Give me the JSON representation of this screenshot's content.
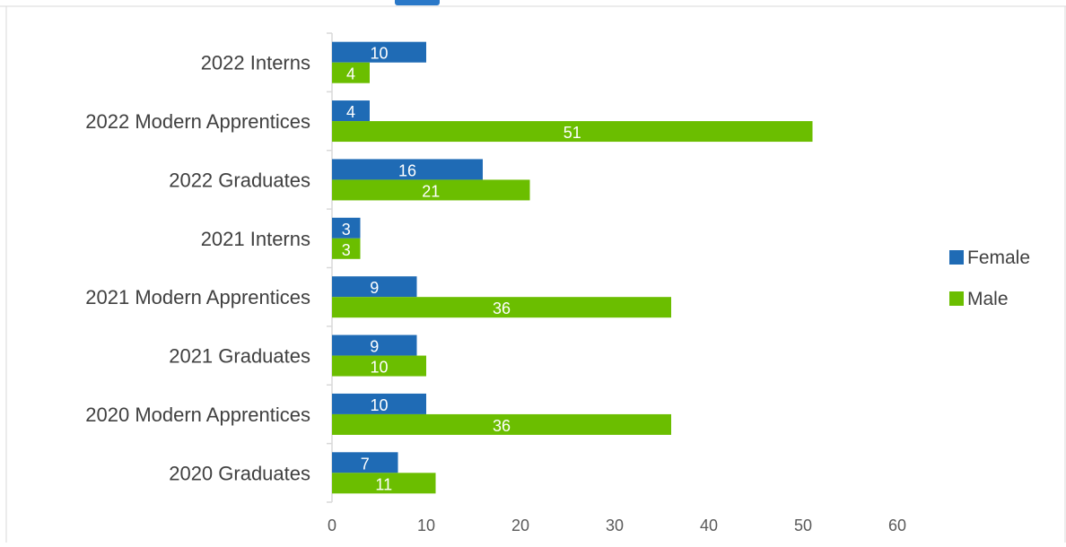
{
  "chart_data": {
    "type": "bar",
    "orientation": "horizontal",
    "title": "",
    "xlabel": "",
    "ylabel": "",
    "categories": [
      "2022 Interns",
      "2022 Modern Apprentices",
      "2022 Graduates",
      "2021 Interns",
      "2021 Modern Apprentices",
      "2021 Graduates",
      "2020 Modern Apprentices",
      "2020 Graduates"
    ],
    "series": [
      {
        "name": "Female",
        "color": "#1F6BB5",
        "values": [
          10,
          4,
          16,
          3,
          9,
          9,
          10,
          7
        ]
      },
      {
        "name": "Male",
        "color": "#6BBE00",
        "values": [
          4,
          51,
          21,
          3,
          36,
          10,
          36,
          11
        ]
      }
    ],
    "xlim": [
      0,
      60
    ],
    "x_ticks": [
      0,
      10,
      20,
      30,
      40,
      50,
      60
    ],
    "grid": false,
    "data_labels": true,
    "legend_position": "right"
  }
}
